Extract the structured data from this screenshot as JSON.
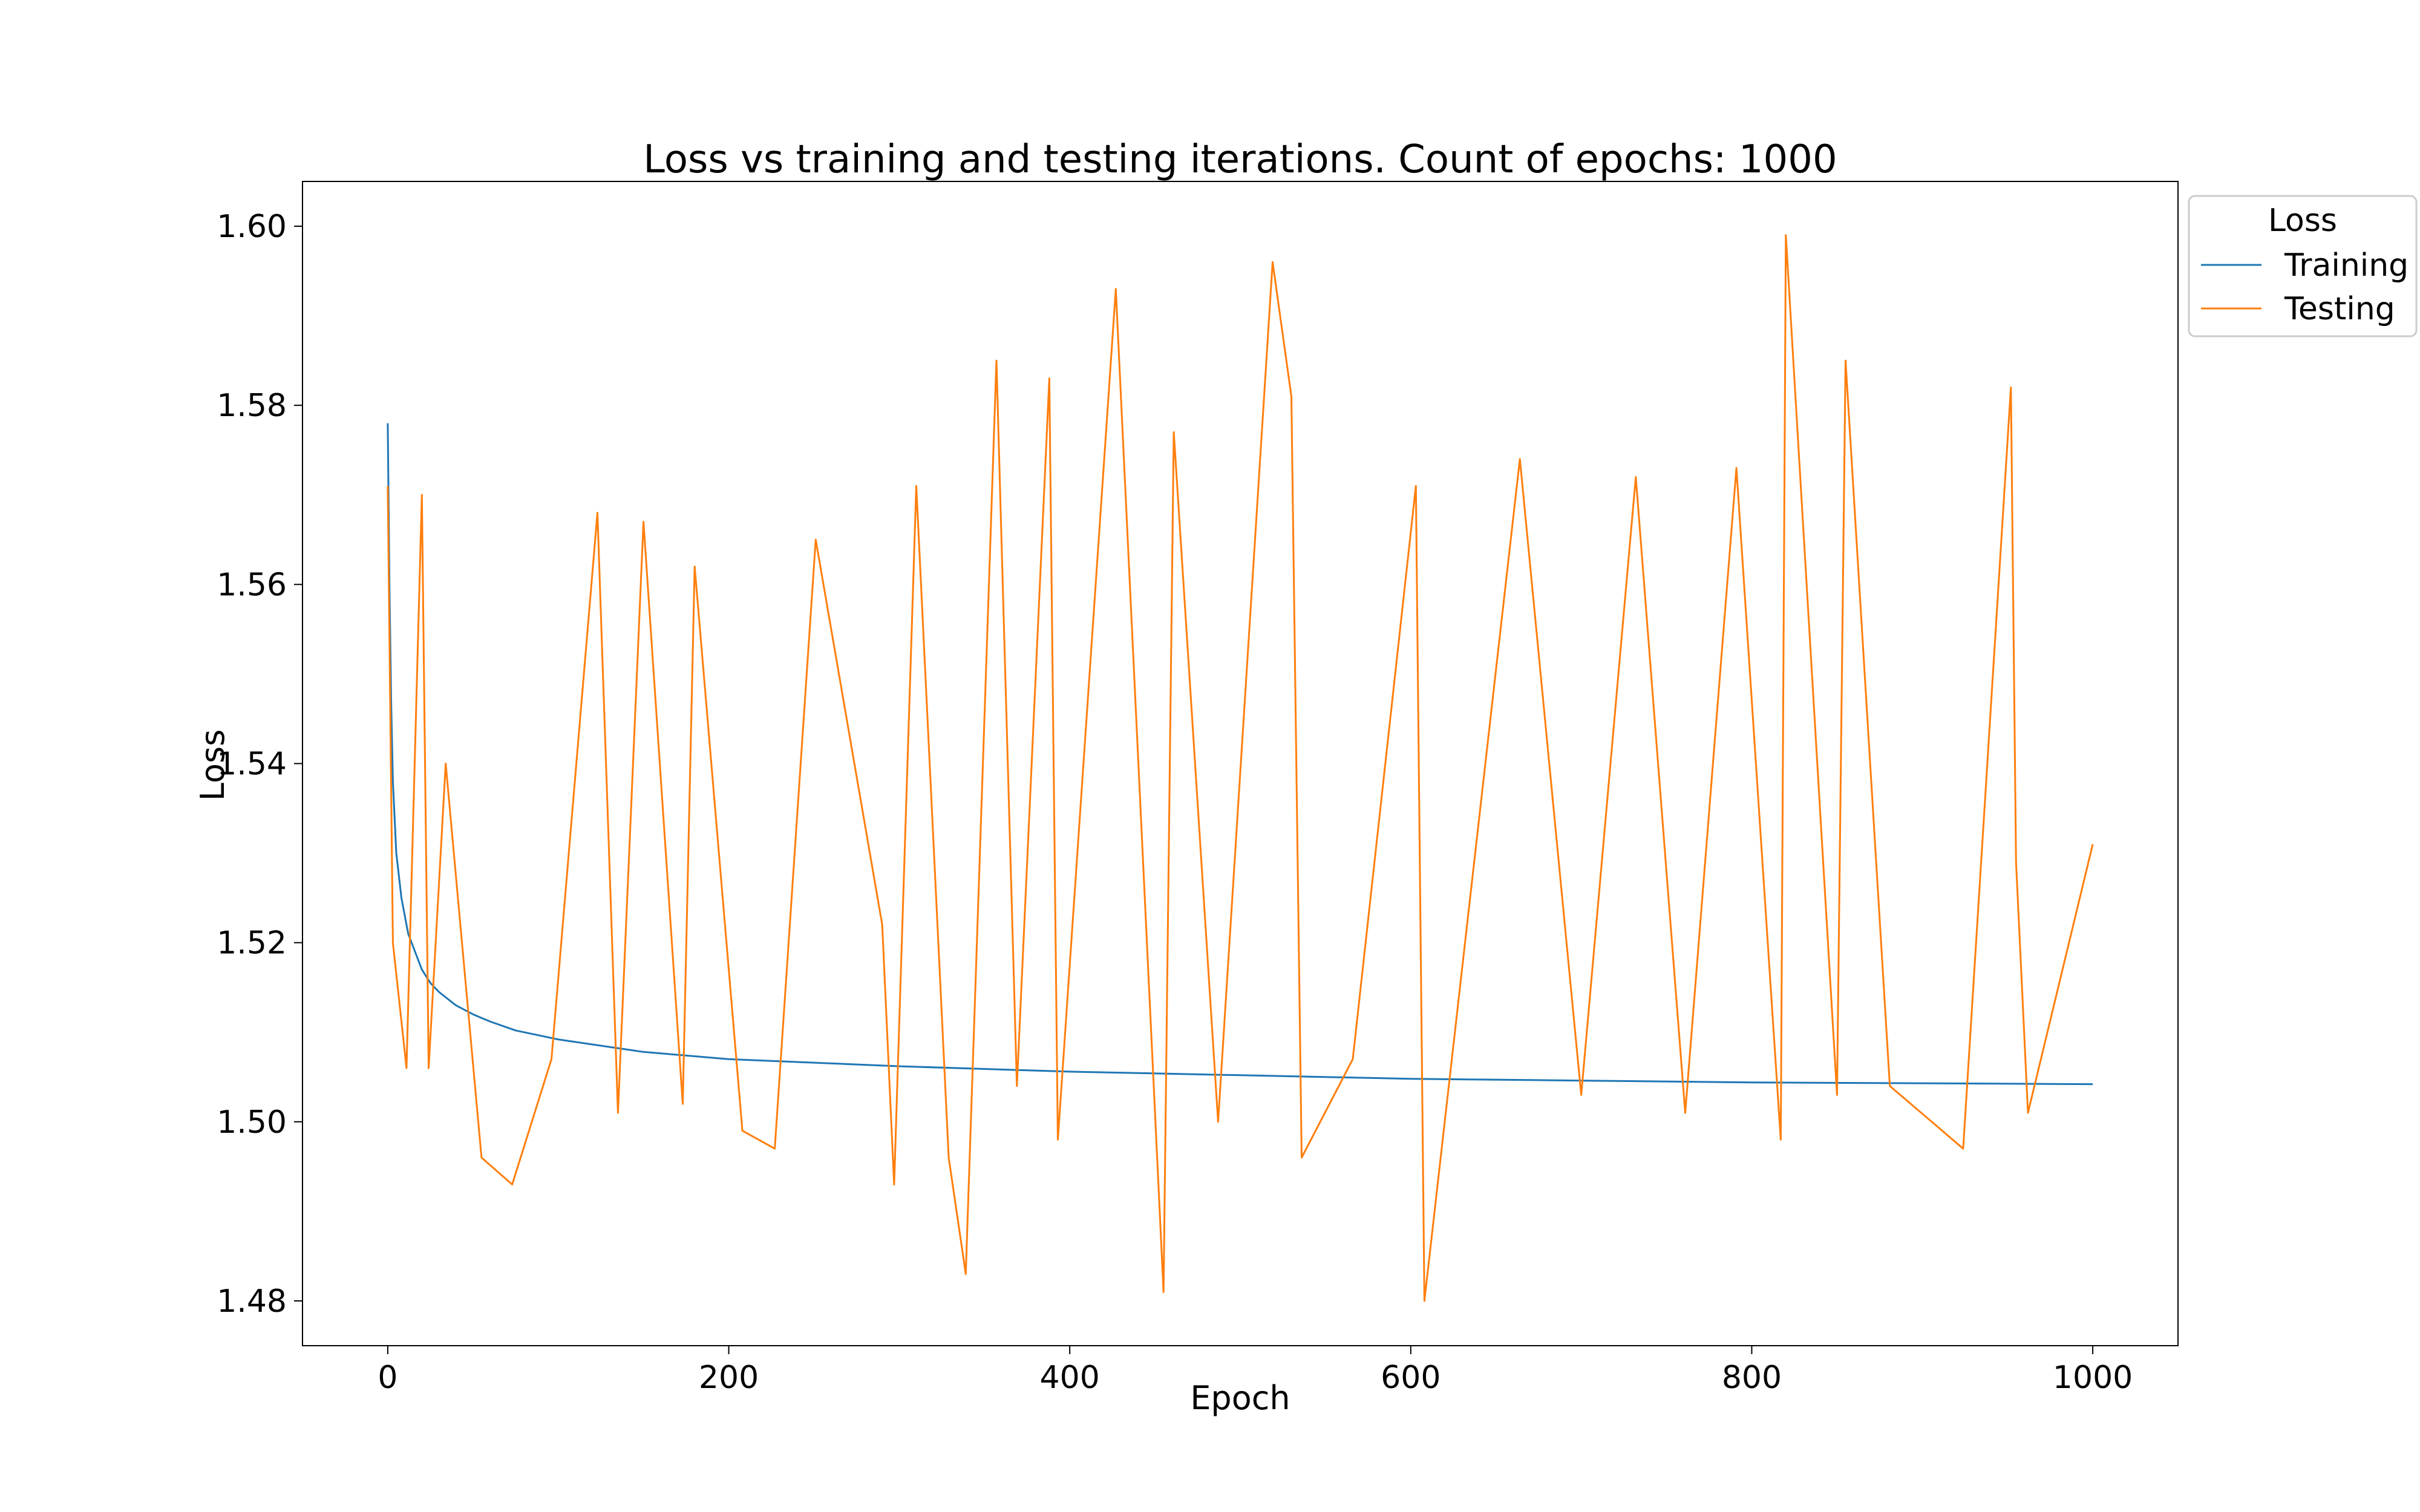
{
  "chart_data": {
    "type": "line",
    "title": "Loss vs training and testing iterations. Count of epochs: 1000",
    "xlabel": "Epoch",
    "ylabel": "Loss",
    "xlim": [
      -50,
      1050
    ],
    "ylim": [
      1.475,
      1.605
    ],
    "xticks": [
      0,
      200,
      400,
      600,
      800,
      1000
    ],
    "yticks": [
      1.48,
      1.5,
      1.52,
      1.54,
      1.56,
      1.58,
      1.6
    ],
    "grid": false,
    "legend": {
      "title": "Loss",
      "placement": "outside-top-right"
    },
    "series": [
      {
        "name": "Training",
        "color": "#1f77b4",
        "x": [
          0,
          1,
          2,
          3,
          5,
          8,
          12,
          16,
          20,
          25,
          30,
          40,
          50,
          60,
          75,
          100,
          150,
          200,
          300,
          400,
          500,
          600,
          700,
          800,
          900,
          1000
        ],
        "values": [
          1.578,
          1.56,
          1.547,
          1.538,
          1.53,
          1.525,
          1.521,
          1.519,
          1.517,
          1.5155,
          1.5145,
          1.513,
          1.512,
          1.5112,
          1.5102,
          1.5092,
          1.5078,
          1.507,
          1.5062,
          1.5056,
          1.5052,
          1.5048,
          1.5046,
          1.5044,
          1.5043,
          1.5042
        ]
      },
      {
        "name": "Testing",
        "color": "#ff7f0e",
        "x": [
          0,
          3,
          11,
          20,
          24,
          34,
          55,
          73,
          96,
          123,
          135,
          150,
          173,
          180,
          208,
          227,
          251,
          290,
          297,
          310,
          329,
          339,
          357,
          369,
          388,
          393,
          427,
          455,
          461,
          487,
          519,
          530,
          536,
          566,
          603,
          608,
          664,
          700,
          732,
          761,
          791,
          817,
          820,
          850,
          855,
          881,
          924,
          952,
          955,
          962,
          1000
        ],
        "values": [
          1.571,
          1.52,
          1.506,
          1.57,
          1.506,
          1.54,
          1.496,
          1.493,
          1.507,
          1.568,
          1.501,
          1.567,
          1.502,
          1.562,
          1.499,
          1.497,
          1.565,
          1.522,
          1.493,
          1.571,
          1.496,
          1.483,
          1.585,
          1.504,
          1.583,
          1.498,
          1.593,
          1.481,
          1.577,
          1.5,
          1.596,
          1.581,
          1.496,
          1.507,
          1.571,
          1.48,
          1.574,
          1.503,
          1.572,
          1.501,
          1.573,
          1.498,
          1.599,
          1.503,
          1.585,
          1.504,
          1.497,
          1.582,
          1.529,
          1.501,
          1.531
        ]
      }
    ]
  }
}
